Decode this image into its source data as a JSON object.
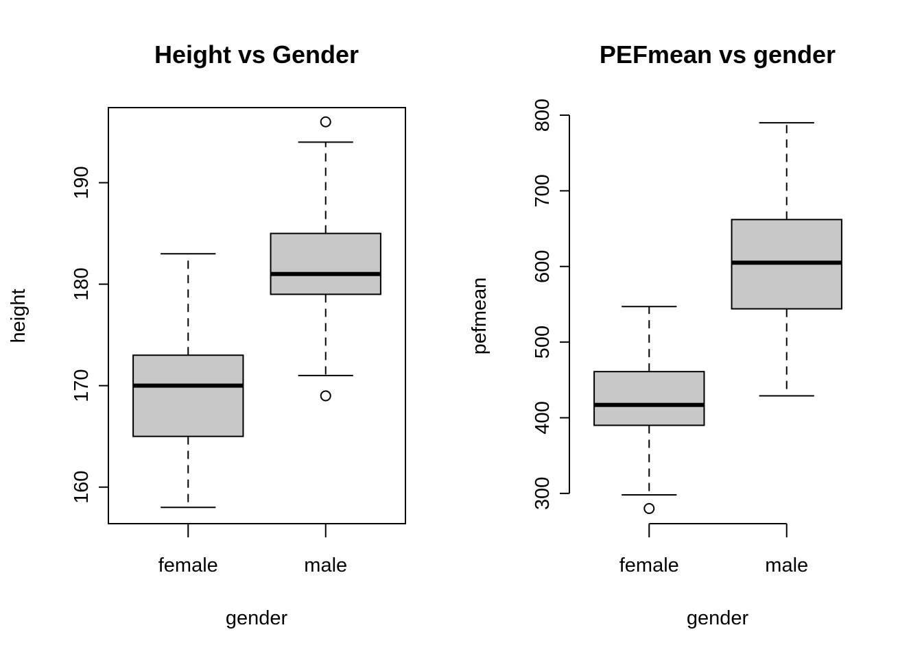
{
  "chart_data": [
    {
      "type": "boxplot",
      "title": "Height vs Gender",
      "xlabel": "gender",
      "ylabel": "height",
      "categories": [
        "female",
        "male"
      ],
      "ylim": [
        156.4,
        197.4
      ],
      "yticks": [
        160,
        170,
        180,
        190
      ],
      "frame": "box",
      "grid": false,
      "box_color": "#c8c8c8",
      "boxes": [
        {
          "name": "female",
          "whisker_low": 158,
          "q1": 165,
          "median": 170,
          "q3": 173,
          "whisker_high": 183,
          "outliers": []
        },
        {
          "name": "male",
          "whisker_low": 171,
          "q1": 179,
          "median": 181,
          "q3": 185,
          "whisker_high": 194,
          "outliers": [
            169,
            196
          ]
        }
      ]
    },
    {
      "type": "boxplot",
      "title": "PEFmean vs gender",
      "xlabel": "gender",
      "ylabel": "pefmean",
      "categories": [
        "female",
        "male"
      ],
      "ylim": [
        260,
        810
      ],
      "yticks": [
        300,
        400,
        500,
        600,
        700,
        800
      ],
      "frame": "axes",
      "grid": false,
      "box_color": "#c8c8c8",
      "boxes": [
        {
          "name": "female",
          "whisker_low": 298,
          "q1": 390,
          "median": 417,
          "q3": 461,
          "whisker_high": 547,
          "outliers": [
            280
          ]
        },
        {
          "name": "male",
          "whisker_low": 429,
          "q1": 544,
          "median": 605,
          "q3": 662,
          "whisker_high": 790,
          "outliers": []
        }
      ]
    }
  ]
}
